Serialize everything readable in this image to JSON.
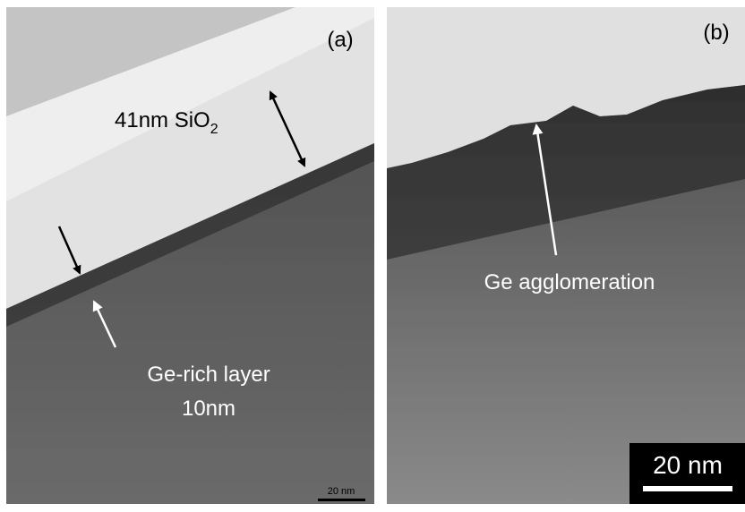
{
  "panels": [
    {
      "tag": "(a)",
      "annotations": [
        {
          "label": "41nm SiO",
          "subscript": "2"
        },
        {
          "lines": [
            "Ge-rich layer",
            "10nm"
          ]
        }
      ],
      "scale_bar": "20 nm"
    },
    {
      "tag": "(b)",
      "annotations": [
        {
          "label": "Ge agglomeration"
        }
      ],
      "scale_bar": "20 nm"
    }
  ]
}
